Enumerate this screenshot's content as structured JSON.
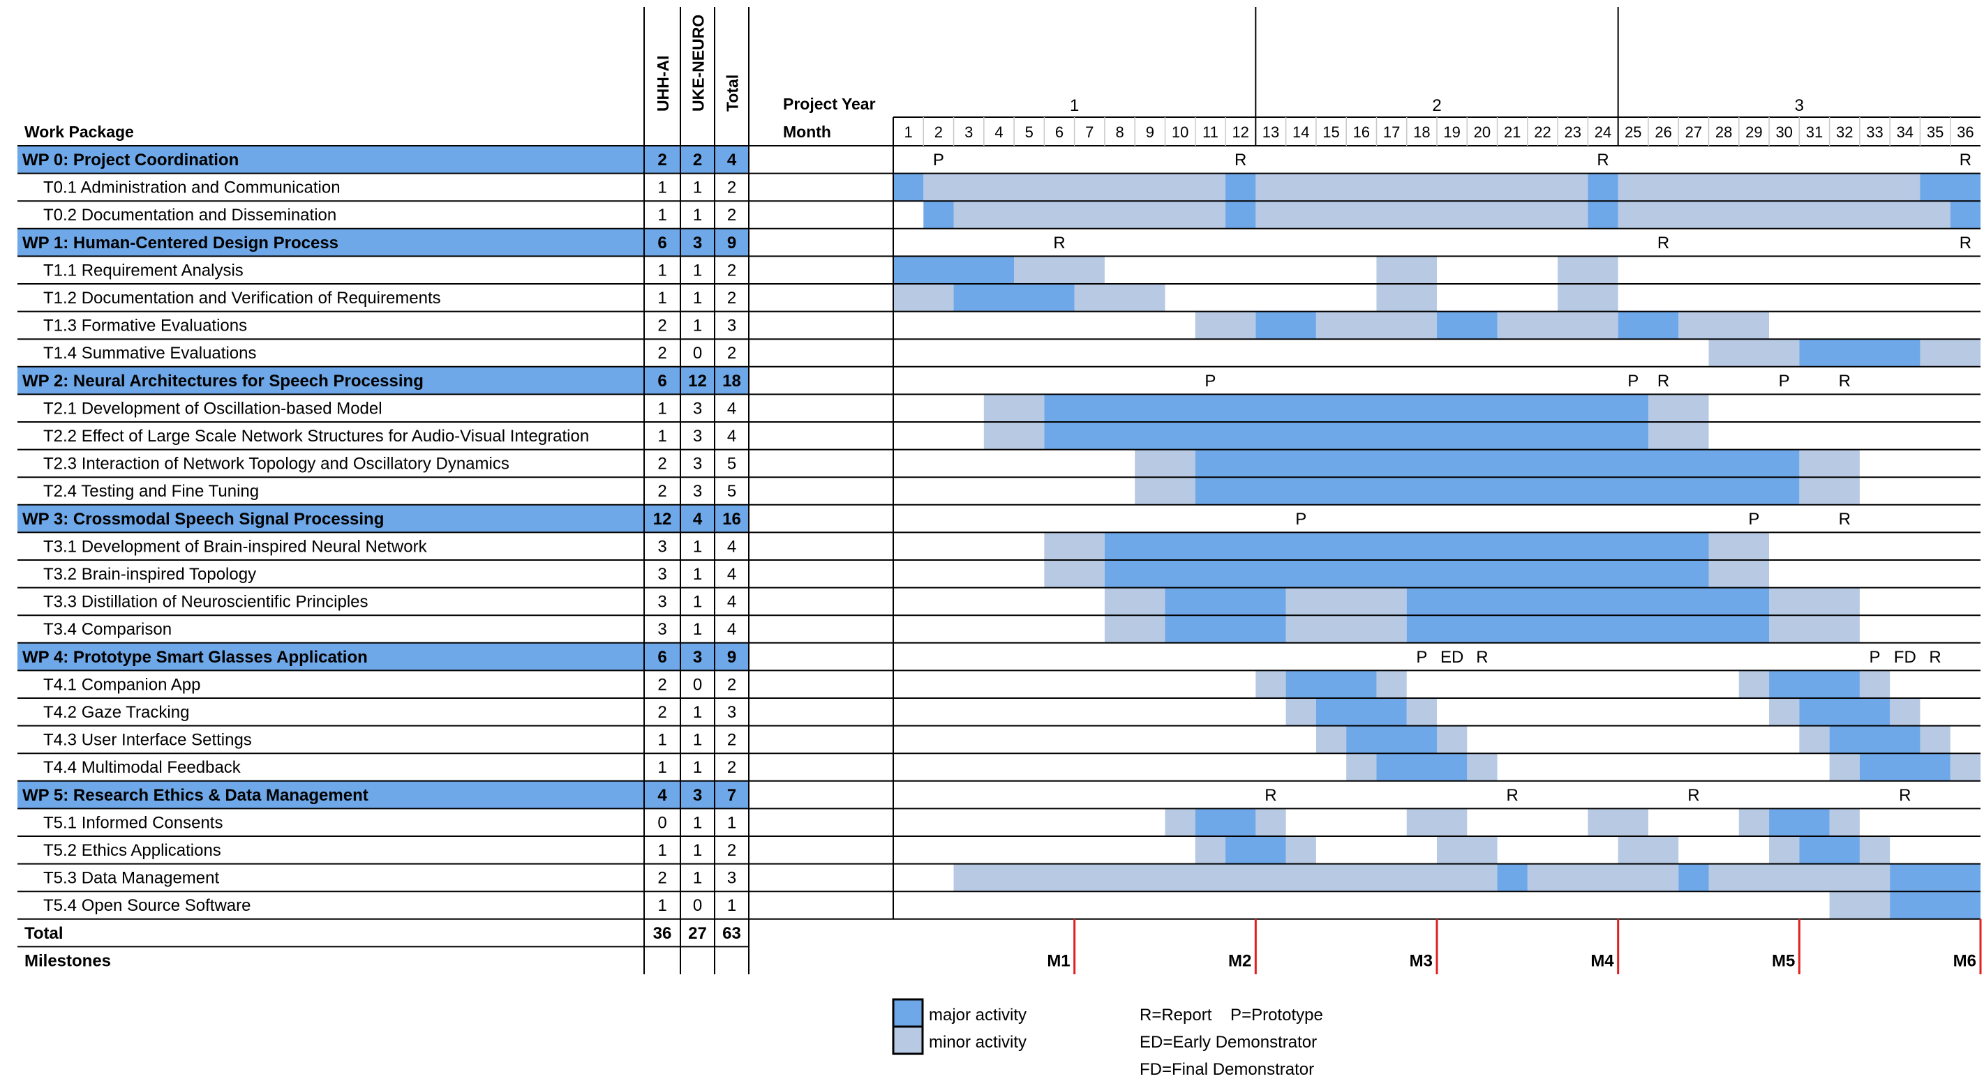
{
  "chart_data": {
    "type": "table",
    "header": {
      "work_package_label": "Work Package",
      "partner_columns": [
        "UHH-AI",
        "UKE-NEURO",
        "Total"
      ],
      "project_year_label": "Project Year",
      "month_label": "Month",
      "years": [
        "1",
        "2",
        "3"
      ],
      "months": [
        "1",
        "2",
        "3",
        "4",
        "5",
        "6",
        "7",
        "8",
        "9",
        "10",
        "11",
        "12",
        "13",
        "14",
        "15",
        "16",
        "17",
        "18",
        "19",
        "20",
        "21",
        "22",
        "23",
        "24",
        "25",
        "26",
        "27",
        "28",
        "29",
        "30",
        "31",
        "32",
        "33",
        "34",
        "35",
        "36"
      ]
    },
    "rows": [
      {
        "label": "WP 0: Project Coordination",
        "is_wp": true,
        "uhh": "2",
        "uke": "2",
        "total": "4",
        "markers": [
          {
            "month": 2,
            "text": "P"
          },
          {
            "month": 12,
            "text": "R"
          },
          {
            "month": 24,
            "text": "R"
          },
          {
            "month": 36,
            "text": "R"
          }
        ]
      },
      {
        "label": "T0.1 Administration and Communication",
        "uhh": "1",
        "uke": "1",
        "total": "2",
        "activity": {
          "major": [
            [
              1,
              1
            ],
            [
              12,
              12
            ],
            [
              24,
              24
            ],
            [
              35,
              36
            ]
          ],
          "minor": [
            [
              2,
              11
            ],
            [
              13,
              23
            ],
            [
              25,
              34
            ]
          ]
        }
      },
      {
        "label": "T0.2 Documentation and Dissemination",
        "uhh": "1",
        "uke": "1",
        "total": "2",
        "activity": {
          "major": [
            [
              2,
              2
            ],
            [
              12,
              12
            ],
            [
              24,
              24
            ],
            [
              36,
              36
            ]
          ],
          "minor": [
            [
              3,
              11
            ],
            [
              13,
              23
            ],
            [
              25,
              35
            ]
          ]
        }
      },
      {
        "label": "WP 1: Human-Centered Design Process",
        "is_wp": true,
        "uhh": "6",
        "uke": "3",
        "total": "9",
        "markers": [
          {
            "month": 6,
            "text": "R"
          },
          {
            "month": 26,
            "text": "R"
          },
          {
            "month": 36,
            "text": "R"
          }
        ]
      },
      {
        "label": "T1.1 Requirement Analysis",
        "uhh": "1",
        "uke": "1",
        "total": "2",
        "activity": {
          "major": [
            [
              1,
              4
            ]
          ],
          "minor": [
            [
              5,
              7
            ],
            [
              17,
              18
            ],
            [
              23,
              24
            ]
          ]
        }
      },
      {
        "label": "T1.2 Documentation and Verification of Requirements",
        "uhh": "1",
        "uke": "1",
        "total": "2",
        "activity": {
          "major": [
            [
              3,
              6
            ]
          ],
          "minor": [
            [
              1,
              2
            ],
            [
              7,
              9
            ],
            [
              17,
              18
            ],
            [
              23,
              24
            ]
          ]
        }
      },
      {
        "label": "T1.3 Formative Evaluations",
        "uhh": "2",
        "uke": "1",
        "total": "3",
        "activity": {
          "major": [
            [
              13,
              14
            ],
            [
              19,
              20
            ],
            [
              25,
              26
            ]
          ],
          "minor": [
            [
              11,
              12
            ],
            [
              15,
              18
            ],
            [
              21,
              24
            ],
            [
              27,
              29
            ]
          ]
        }
      },
      {
        "label": "T1.4 Summative Evaluations",
        "uhh": "2",
        "uke": "0",
        "total": "2",
        "activity": {
          "major": [
            [
              31,
              34
            ]
          ],
          "minor": [
            [
              28,
              30
            ],
            [
              35,
              36
            ]
          ]
        }
      },
      {
        "label": "WP 2: Neural Architectures for Speech Processing",
        "is_wp": true,
        "uhh": "6",
        "uke": "12",
        "total": "18",
        "markers": [
          {
            "month": 11,
            "text": "P"
          },
          {
            "month": 25,
            "text": "P"
          },
          {
            "month": 26,
            "text": "R"
          },
          {
            "month": 30,
            "text": "P"
          },
          {
            "month": 32,
            "text": "R"
          }
        ]
      },
      {
        "label": "T2.1 Development of Oscillation-based Model",
        "uhh": "1",
        "uke": "3",
        "total": "4",
        "activity": {
          "major": [
            [
              6,
              25
            ]
          ],
          "minor": [
            [
              4,
              5
            ],
            [
              26,
              27
            ]
          ]
        }
      },
      {
        "label": "T2.2 Effect of Large Scale Network Structures for Audio-Visual Integration",
        "uhh": "1",
        "uke": "3",
        "total": "4",
        "activity": {
          "major": [
            [
              6,
              25
            ]
          ],
          "minor": [
            [
              4,
              5
            ],
            [
              26,
              27
            ]
          ]
        }
      },
      {
        "label": "T2.3 Interaction of Network Topology and Oscillatory Dynamics",
        "uhh": "2",
        "uke": "3",
        "total": "5",
        "activity": {
          "major": [
            [
              11,
              30
            ]
          ],
          "minor": [
            [
              9,
              10
            ],
            [
              31,
              32
            ]
          ]
        }
      },
      {
        "label": "T2.4 Testing and Fine Tuning",
        "uhh": "2",
        "uke": "3",
        "total": "5",
        "activity": {
          "major": [
            [
              11,
              30
            ]
          ],
          "minor": [
            [
              9,
              10
            ],
            [
              31,
              32
            ]
          ]
        }
      },
      {
        "label": "WP 3: Crossmodal Speech Signal Processing",
        "is_wp": true,
        "uhh": "12",
        "uke": "4",
        "total": "16",
        "markers": [
          {
            "month": 14,
            "text": "P"
          },
          {
            "month": 29,
            "text": "P"
          },
          {
            "month": 32,
            "text": "R"
          }
        ]
      },
      {
        "label": "T3.1 Development of Brain-inspired Neural Network",
        "uhh": "3",
        "uke": "1",
        "total": "4",
        "activity": {
          "major": [
            [
              8,
              27
            ]
          ],
          "minor": [
            [
              6,
              7
            ],
            [
              28,
              29
            ]
          ]
        }
      },
      {
        "label": "T3.2 Brain-inspired Topology",
        "uhh": "3",
        "uke": "1",
        "total": "4",
        "activity": {
          "major": [
            [
              8,
              27
            ]
          ],
          "minor": [
            [
              6,
              7
            ],
            [
              28,
              29
            ]
          ]
        }
      },
      {
        "label": "T3.3 Distillation of Neuroscientific Principles",
        "uhh": "3",
        "uke": "1",
        "total": "4",
        "activity": {
          "major": [
            [
              10,
              13
            ],
            [
              18,
              29
            ]
          ],
          "minor": [
            [
              8,
              9
            ],
            [
              14,
              17
            ],
            [
              30,
              32
            ]
          ]
        }
      },
      {
        "label": "T3.4 Comparison",
        "uhh": "3",
        "uke": "1",
        "total": "4",
        "activity": {
          "major": [
            [
              10,
              13
            ],
            [
              18,
              29
            ]
          ],
          "minor": [
            [
              8,
              9
            ],
            [
              14,
              17
            ],
            [
              30,
              32
            ]
          ]
        }
      },
      {
        "label": "WP 4: Prototype Smart Glasses Application",
        "is_wp": true,
        "uhh": "6",
        "uke": "3",
        "total": "9",
        "markers": [
          {
            "month": 18,
            "text": "P"
          },
          {
            "month": 19,
            "text": "ED"
          },
          {
            "month": 20,
            "text": "R"
          },
          {
            "month": 33,
            "text": "P"
          },
          {
            "month": 34,
            "text": "FD"
          },
          {
            "month": 35,
            "text": "R"
          }
        ]
      },
      {
        "label": "T4.1 Companion App",
        "uhh": "2",
        "uke": "0",
        "total": "2",
        "activity": {
          "major": [
            [
              14,
              16
            ],
            [
              30,
              32
            ]
          ],
          "minor": [
            [
              13,
              13
            ],
            [
              17,
              17
            ],
            [
              29,
              29
            ],
            [
              33,
              33
            ]
          ]
        }
      },
      {
        "label": "T4.2 Gaze Tracking",
        "uhh": "2",
        "uke": "1",
        "total": "3",
        "activity": {
          "major": [
            [
              15,
              17
            ],
            [
              31,
              33
            ]
          ],
          "minor": [
            [
              14,
              14
            ],
            [
              18,
              18
            ],
            [
              30,
              30
            ],
            [
              34,
              34
            ]
          ]
        }
      },
      {
        "label": "T4.3 User Interface Settings",
        "uhh": "1",
        "uke": "1",
        "total": "2",
        "activity": {
          "major": [
            [
              16,
              18
            ],
            [
              32,
              34
            ]
          ],
          "minor": [
            [
              15,
              15
            ],
            [
              19,
              19
            ],
            [
              31,
              31
            ],
            [
              35,
              35
            ]
          ]
        }
      },
      {
        "label": "T4.4 Multimodal Feedback",
        "uhh": "1",
        "uke": "1",
        "total": "2",
        "activity": {
          "major": [
            [
              17,
              19
            ],
            [
              33,
              35
            ]
          ],
          "minor": [
            [
              16,
              16
            ],
            [
              20,
              20
            ],
            [
              32,
              32
            ],
            [
              36,
              36
            ]
          ]
        }
      },
      {
        "label": "WP 5: Research Ethics & Data Management",
        "is_wp": true,
        "uhh": "4",
        "uke": "3",
        "total": "7",
        "markers": [
          {
            "month": 13,
            "text": "R"
          },
          {
            "month": 21,
            "text": "R"
          },
          {
            "month": 27,
            "text": "R"
          },
          {
            "month": 34,
            "text": "R"
          }
        ]
      },
      {
        "label": "T5.1 Informed Consents",
        "uhh": "0",
        "uke": "1",
        "total": "1",
        "activity": {
          "major": [
            [
              11,
              12
            ],
            [
              30,
              31
            ]
          ],
          "minor": [
            [
              10,
              10
            ],
            [
              13,
              13
            ],
            [
              18,
              19
            ],
            [
              24,
              25
            ],
            [
              29,
              29
            ],
            [
              32,
              32
            ]
          ]
        }
      },
      {
        "label": "T5.2 Ethics Applications",
        "uhh": "1",
        "uke": "1",
        "total": "2",
        "activity": {
          "major": [
            [
              12,
              13
            ],
            [
              31,
              32
            ]
          ],
          "minor": [
            [
              11,
              11
            ],
            [
              14,
              14
            ],
            [
              19,
              20
            ],
            [
              25,
              26
            ],
            [
              30,
              30
            ],
            [
              33,
              33
            ]
          ]
        }
      },
      {
        "label": "T5.3 Data Management",
        "uhh": "2",
        "uke": "1",
        "total": "3",
        "activity": {
          "major": [
            [
              21,
              21
            ],
            [
              27,
              27
            ],
            [
              34,
              36
            ]
          ],
          "minor": [
            [
              3,
              20
            ],
            [
              22,
              26
            ],
            [
              28,
              33
            ]
          ]
        }
      },
      {
        "label": "T5.4 Open Source Software",
        "uhh": "1",
        "uke": "0",
        "total": "1",
        "activity": {
          "major": [
            [
              34,
              36
            ]
          ],
          "minor": [
            [
              32,
              33
            ]
          ]
        }
      }
    ],
    "totals": {
      "label": "Total",
      "uhh": "36",
      "uke": "27",
      "total": "63"
    },
    "milestones": {
      "label": "Milestones",
      "items": [
        {
          "month": 6,
          "text": "M1"
        },
        {
          "month": 12,
          "text": "M2"
        },
        {
          "month": 18,
          "text": "M3"
        },
        {
          "month": 24,
          "text": "M4"
        },
        {
          "month": 30,
          "text": "M5"
        },
        {
          "month": 36,
          "text": "M6"
        }
      ]
    },
    "legend": {
      "major": "major activity",
      "minor": "minor activity",
      "notes": [
        "R=Report    P=Prototype",
        "ED=Early Demonstrator",
        "FD=Final Demonstrator"
      ]
    },
    "colors": {
      "major": "#6fa8e8",
      "minor": "#b7c9e3",
      "wp_row": "#6fa8e8",
      "milestone_line": "#e02020",
      "month_text": "#a0a0a0"
    }
  }
}
